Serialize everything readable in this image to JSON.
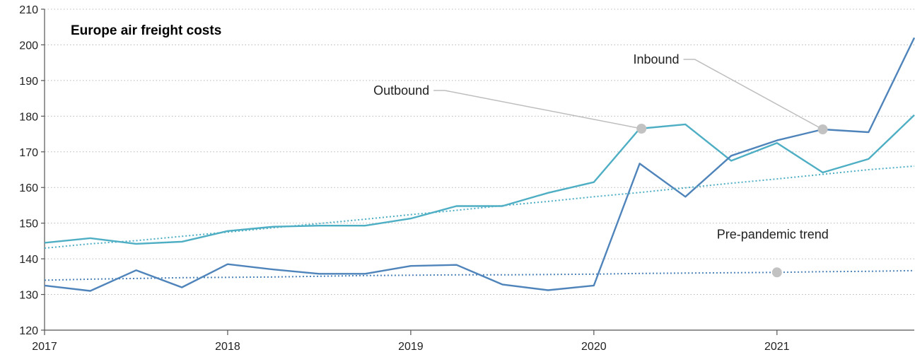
{
  "chart_data": {
    "type": "line",
    "title": "Europe air freight costs",
    "xlabel": "",
    "ylabel": "",
    "ylim": [
      120,
      210
    ],
    "yticks": [
      120,
      130,
      140,
      150,
      160,
      170,
      180,
      190,
      200,
      210
    ],
    "xlim": [
      2017,
      2021.75
    ],
    "xticks": [
      2017,
      2018,
      2019,
      2020,
      2021
    ],
    "grid": true,
    "series": [
      {
        "name": "Outbound",
        "color": "#4eaec4",
        "style": "solid",
        "x": [
          2017,
          2017.25,
          2017.5,
          2017.75,
          2018,
          2018.25,
          2018.5,
          2018.75,
          2019,
          2019.25,
          2019.5,
          2019.75,
          2020,
          2020.25,
          2020.5,
          2020.75,
          2021,
          2021.25,
          2021.5,
          2021.75
        ],
        "y": [
          144.5,
          145.8,
          144.2,
          144.8,
          147.8,
          149.0,
          149.3,
          149.3,
          151.3,
          154.8,
          154.8,
          158.5,
          161.5,
          176.5,
          177.7,
          167.5,
          172.5,
          164.2,
          168.0,
          180.3
        ]
      },
      {
        "name": "Inbound",
        "color": "#4f84bb",
        "style": "solid",
        "x": [
          2017,
          2017.25,
          2017.5,
          2017.75,
          2018,
          2018.25,
          2018.5,
          2018.75,
          2019,
          2019.25,
          2019.5,
          2019.75,
          2020,
          2020.25,
          2020.5,
          2020.75,
          2021,
          2021.25,
          2021.5,
          2021.75
        ],
        "y": [
          132.5,
          131.0,
          136.8,
          132.0,
          138.5,
          137.0,
          135.8,
          135.8,
          138.0,
          138.3,
          132.8,
          131.2,
          132.5,
          166.7,
          157.4,
          168.9,
          173.2,
          176.3,
          175.5,
          202.0
        ]
      },
      {
        "name": "Outbound pre-pandemic trend",
        "color": "#4eaec4",
        "style": "dotted",
        "x": [
          2017,
          2017.25,
          2017.5,
          2017.75,
          2018,
          2018.25,
          2018.5,
          2018.75,
          2019,
          2019.25,
          2019.5,
          2019.75,
          2020,
          2020.25,
          2020.5,
          2020.75,
          2021,
          2021.25,
          2021.5,
          2021.75
        ],
        "y": [
          143.0,
          144.2,
          145.1,
          146.3,
          147.5,
          148.7,
          149.9,
          151.1,
          152.4,
          153.6,
          154.9,
          156.1,
          157.4,
          158.6,
          159.9,
          161.2,
          162.4,
          163.7,
          165.0,
          166.0
        ]
      },
      {
        "name": "Inbound pre-pandemic trend",
        "color": "#4f84bb",
        "style": "dotted",
        "x": [
          2017,
          2017.25,
          2017.5,
          2017.75,
          2018,
          2018.25,
          2018.5,
          2018.75,
          2019,
          2019.25,
          2019.5,
          2019.75,
          2020,
          2020.25,
          2020.5,
          2020.75,
          2021,
          2021.25,
          2021.5,
          2021.75
        ],
        "y": [
          134.0,
          134.3,
          134.5,
          134.7,
          134.8,
          134.9,
          135.1,
          135.3,
          135.4,
          135.5,
          135.5,
          135.6,
          135.7,
          135.9,
          136.0,
          136.1,
          136.2,
          136.4,
          136.5,
          136.7
        ]
      }
    ],
    "annotations": [
      {
        "text": "Outbound",
        "x": 2020.26,
        "y": 176.5,
        "marker_color": "#c2c2c2"
      },
      {
        "text": "Inbound",
        "x": 2021.25,
        "y": 176.3,
        "marker_color": "#c2c2c2"
      },
      {
        "text": "Pre-pandemic trend",
        "x": 2021.0,
        "y": 136.2,
        "marker_color": "#c2c2c2"
      }
    ]
  }
}
